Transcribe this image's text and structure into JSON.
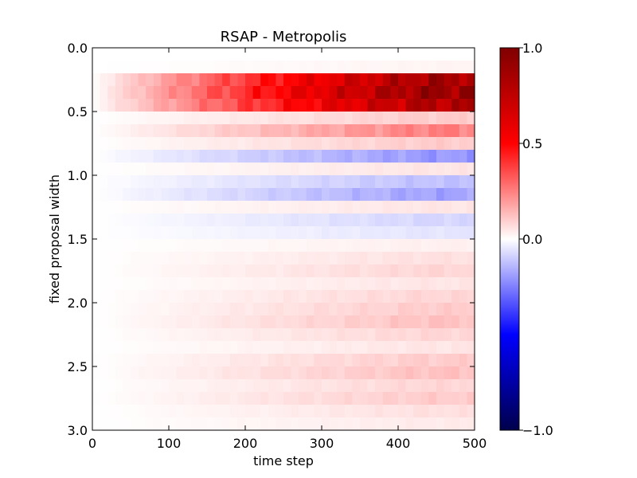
{
  "chart_data": {
    "type": "heatmap",
    "title": "RSAP - Metropolis",
    "xlabel": "time step",
    "ylabel": "fixed proposal width",
    "xlim": [
      0,
      500
    ],
    "ylim": [
      3.0,
      0.0
    ],
    "y_axis_inverted": true,
    "x_ticks": [
      "0",
      "100",
      "200",
      "300",
      "400",
      "500"
    ],
    "y_ticks": [
      "0.0",
      "0.5",
      "1.0",
      "1.5",
      "2.0",
      "2.5",
      "3.0"
    ],
    "colormap": "seismic",
    "color_range": [
      -1.0,
      1.0
    ],
    "colorbar_ticks": [
      "1.0",
      "0.5",
      "0.0",
      "−1.0"
    ],
    "colorbar_tick_values": [
      1.0,
      0.5,
      0.0,
      -1.0
    ],
    "colorbar_placement": "right",
    "grid": false,
    "row_step": 0.1,
    "column_step": 10,
    "rows": [
      {
        "y": 0.0,
        "max_value": 0.0
      },
      {
        "y": 0.1,
        "max_value": 0.02
      },
      {
        "y": 0.2,
        "max_value": 0.85
      },
      {
        "y": 0.3,
        "max_value": 0.9
      },
      {
        "y": 0.4,
        "max_value": 0.8
      },
      {
        "y": 0.5,
        "max_value": 0.1
      },
      {
        "y": 0.6,
        "max_value": 0.25
      },
      {
        "y": 0.7,
        "max_value": 0.1
      },
      {
        "y": 0.8,
        "max_value": -0.2
      },
      {
        "y": 0.9,
        "max_value": 0.05
      },
      {
        "y": 1.0,
        "max_value": -0.12
      },
      {
        "y": 1.1,
        "max_value": -0.18
      },
      {
        "y": 1.2,
        "max_value": 0.05
      },
      {
        "y": 1.3,
        "max_value": -0.08
      },
      {
        "y": 1.4,
        "max_value": -0.05
      },
      {
        "y": 1.5,
        "max_value": 0.03
      },
      {
        "y": 1.6,
        "max_value": 0.06
      },
      {
        "y": 1.7,
        "max_value": 0.08
      },
      {
        "y": 1.8,
        "max_value": 0.05
      },
      {
        "y": 1.9,
        "max_value": 0.08
      },
      {
        "y": 2.0,
        "max_value": 0.1
      },
      {
        "y": 2.1,
        "max_value": 0.12
      },
      {
        "y": 2.2,
        "max_value": 0.08
      },
      {
        "y": 2.3,
        "max_value": 0.05
      },
      {
        "y": 2.4,
        "max_value": 0.1
      },
      {
        "y": 2.5,
        "max_value": 0.12
      },
      {
        "y": 2.6,
        "max_value": 0.08
      },
      {
        "y": 2.7,
        "max_value": 0.1
      },
      {
        "y": 2.8,
        "max_value": 0.06
      },
      {
        "y": 2.9,
        "max_value": 0.04
      }
    ]
  }
}
